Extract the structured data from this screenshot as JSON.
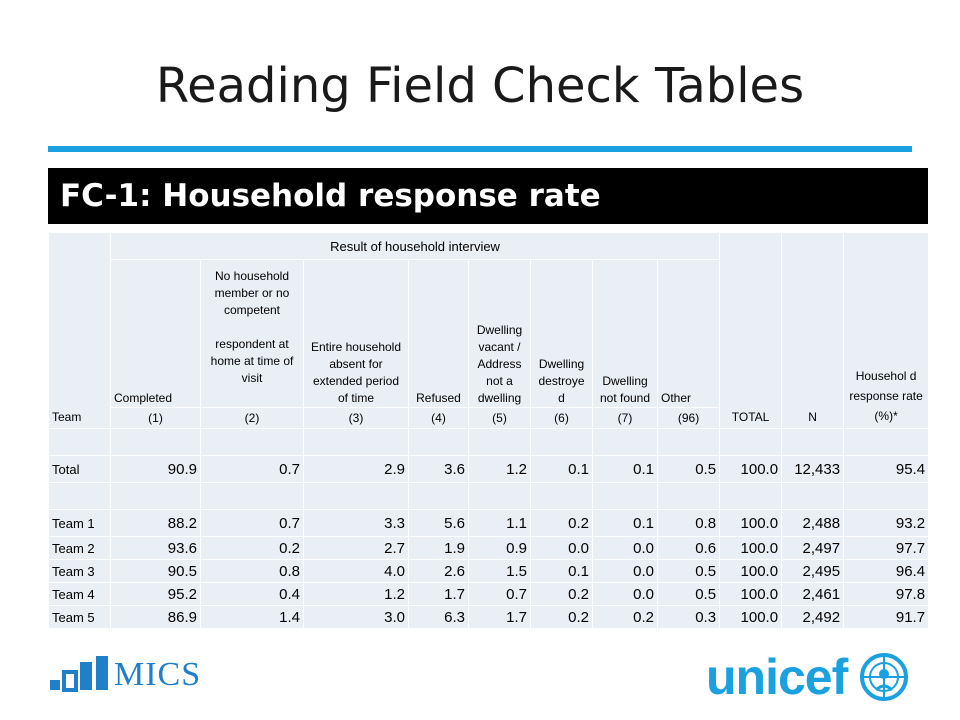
{
  "slide_title": "Reading Field Check Tables",
  "banner_title": "FC-1: Household response rate",
  "table": {
    "group_header": "Result of household interview",
    "columns": {
      "completed": "Completed",
      "no_member_a": "No household member or no competent",
      "no_member_b": "respondent at home at time of visit",
      "absent": "Entire household absent for extended period of time",
      "refused": "Refused",
      "vacant": "Dwelling vacant / Address not a dwelling",
      "destroyed": "Dwelling destroye d",
      "not_found": "Dwelling not found",
      "other": "Other",
      "team": "Team",
      "total": "TOTAL",
      "n": "N",
      "rate": "Househol d response rate (%)*"
    },
    "codes": [
      "(1)",
      "(2)",
      "(3)",
      "(4)",
      "(5)",
      "(6)",
      "(7)",
      "(96)"
    ],
    "total_row": {
      "label": "Total",
      "values": [
        "90.9",
        "0.7",
        "2.9",
        "3.6",
        "1.2",
        "0.1",
        "0.1",
        "0.5",
        "100.0",
        "12,433",
        "95.4"
      ]
    },
    "team_rows": [
      {
        "label": "Team 1",
        "values": [
          "88.2",
          "0.7",
          "3.3",
          "5.6",
          "1.1",
          "0.2",
          "0.1",
          "0.8",
          "100.0",
          "2,488",
          "93.2"
        ]
      },
      {
        "label": "Team 2",
        "values": [
          "93.6",
          "0.2",
          "2.7",
          "1.9",
          "0.9",
          "0.0",
          "0.0",
          "0.6",
          "100.0",
          "2,497",
          "97.7"
        ]
      },
      {
        "label": "Team 3",
        "values": [
          "90.5",
          "0.8",
          "4.0",
          "2.6",
          "1.5",
          "0.1",
          "0.0",
          "0.5",
          "100.0",
          "2,495",
          "96.4"
        ]
      },
      {
        "label": "Team 4",
        "values": [
          "95.2",
          "0.4",
          "1.2",
          "1.7",
          "0.7",
          "0.2",
          "0.0",
          "0.5",
          "100.0",
          "2,461",
          "97.8"
        ]
      },
      {
        "label": "Team 5",
        "values": [
          "86.9",
          "1.4",
          "3.0",
          "6.3",
          "1.7",
          "0.2",
          "0.2",
          "0.3",
          "100.0",
          "2,492",
          "91.7"
        ]
      }
    ]
  },
  "logos": {
    "mics_text": "MICS",
    "unicef_text": "unicef",
    "mics_color": "#1f7fc8",
    "unicef_color": "#1ca1e0"
  },
  "colors": {
    "rule": "#1ca1e0",
    "banner_bg": "#000000",
    "cell_bg": "#eaeef5"
  }
}
